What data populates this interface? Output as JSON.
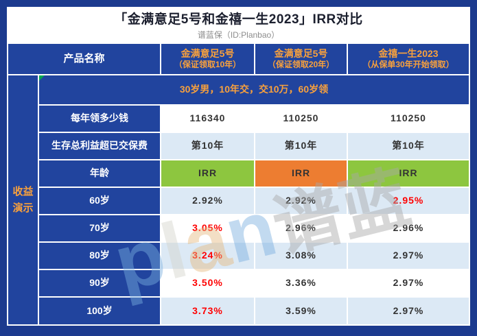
{
  "title": "「金满意足5号和金禧一生2023」IRR对比",
  "subtitle": "谱蓝保（ID:Planbao）",
  "colors": {
    "frame_blue": "#1c3a8e",
    "cell_blue": "#21449e",
    "row_light": "#dce9f5",
    "green": "#8dc63f",
    "orange_cell": "#ed7d31",
    "text_orange": "#f9a13c",
    "red": "#fe0000",
    "value_dark": "#333333",
    "title_color": "#1b1f2e",
    "subtitle_color": "#8c8c8c",
    "comment_green": "#00a550"
  },
  "table": {
    "corner_label": "产品名称",
    "products": [
      {
        "name": "金满意足5号",
        "note": "（保证领取10年）"
      },
      {
        "name": "金满意足5号",
        "note": "（保证领取20年）"
      },
      {
        "name": "金禧一生2023",
        "note": "（从保单30年开始领取）"
      }
    ],
    "sidebar_lines": [
      "收益",
      "演示"
    ],
    "assumption": "30岁男，10年交，交10万，60岁领",
    "rows": [
      {
        "label": "每年领多少钱",
        "values": [
          "116340",
          "110250",
          "110250"
        ],
        "red_index": null
      },
      {
        "label": "生存总利益超已交保费",
        "values": [
          "第10年",
          "第10年",
          "第10年"
        ],
        "red_index": null
      },
      {
        "label": "年龄",
        "values": [
          "IRR",
          "IRR",
          "IRR"
        ],
        "red_index": null
      },
      {
        "label": "60岁",
        "values": [
          "2.92%",
          "2.92%",
          "2.95%"
        ],
        "red_index": 2
      },
      {
        "label": "70岁",
        "values": [
          "3.05%",
          "2.96%",
          "2.96%"
        ],
        "red_index": 0
      },
      {
        "label": "80岁",
        "values": [
          "3.24%",
          "3.08%",
          "2.97%"
        ],
        "red_index": 0
      },
      {
        "label": "90岁",
        "values": [
          "3.50%",
          "3.36%",
          "2.97%"
        ],
        "red_index": 0
      },
      {
        "label": "100岁",
        "values": [
          "3.73%",
          "3.59%",
          "2.97%"
        ],
        "red_index": 0
      }
    ]
  },
  "watermark": {
    "p": "p",
    "l": "l",
    "a": "a",
    "n": "n",
    "cjk": "谱蓝"
  }
}
